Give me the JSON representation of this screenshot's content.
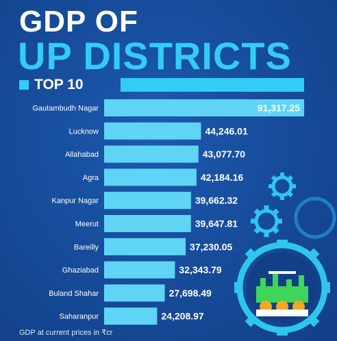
{
  "header": {
    "line1": "GDP OF",
    "line2": "UP DISTRICTS",
    "section_label": "TOP 10"
  },
  "colors": {
    "accent": "#33ccf5",
    "bar": "#5fd4f5",
    "background": "#174d9c",
    "text": "#ffffff"
  },
  "chart_data": {
    "type": "bar",
    "orientation": "horizontal",
    "categories": [
      "Gautambudh Nagar",
      "Lucknow",
      "Allahabad",
      "Agra",
      "Kanpur Nagar",
      "Meerut",
      "Bareilly",
      "Ghaziabad",
      "Buland Shahar",
      "Saharanpur"
    ],
    "value_labels": [
      "91,317.25",
      "44,246.01",
      "43,077.70",
      "42,184.16",
      "39,662.32",
      "39,647.81",
      "37,230.05",
      "32,343.79",
      "27,698.49",
      "24,208.97"
    ],
    "values": [
      91317.25,
      44246.01,
      43077.7,
      42184.16,
      39662.32,
      39647.81,
      37230.05,
      32343.79,
      27698.49,
      24208.97
    ],
    "title": "GDP OF UP DISTRICTS",
    "xlabel": "",
    "ylabel": "",
    "grid": false,
    "legend": "none"
  },
  "footnote": "GDP at current prices in ₹cr",
  "icons": [
    "gear-icon",
    "gear-icon",
    "gear-icon",
    "industry-icon"
  ]
}
